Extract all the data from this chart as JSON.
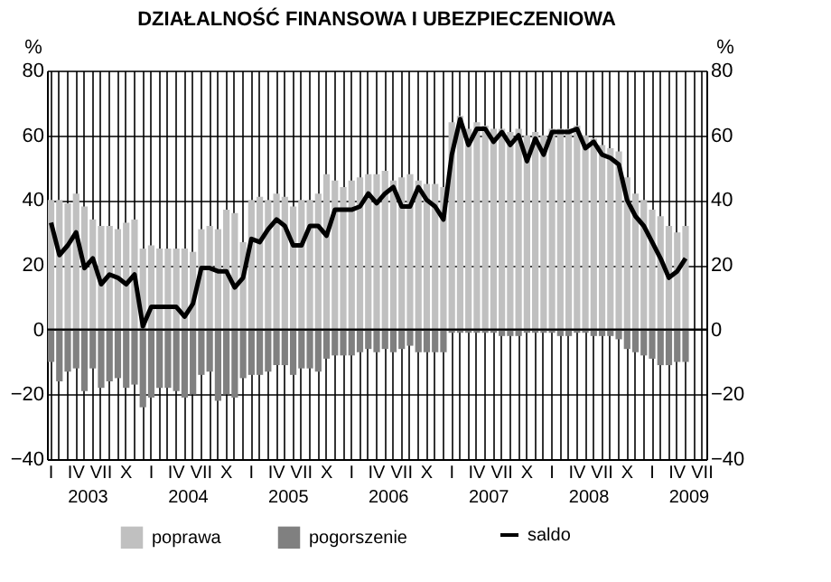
{
  "chart_data": {
    "type": "bar",
    "title": "DZIAŁALNOŚĆ FINANSOWA I UBEZPIECZENIOWA",
    "ylabel": "%",
    "y2label": "%",
    "categories": [
      "I",
      null,
      null,
      "IV",
      null,
      null,
      "VII",
      null,
      null,
      "X",
      null,
      null,
      "I",
      null,
      null,
      "IV",
      null,
      null,
      "VII",
      null,
      null,
      "X",
      null,
      null,
      "I",
      null,
      null,
      "IV",
      null,
      null,
      "VII",
      null,
      null,
      "X",
      null,
      null,
      "I",
      null,
      null,
      "IV",
      null,
      null,
      "VII",
      null,
      null,
      "X",
      null,
      null,
      "I",
      null,
      null,
      "IV",
      null,
      null,
      "VII",
      null,
      null,
      "X",
      null,
      null,
      "I",
      null,
      null,
      "IV",
      null,
      null,
      "VII",
      null,
      null,
      "X",
      null,
      null,
      "I",
      null,
      null,
      "IV",
      null,
      null,
      "VII"
    ],
    "series": [
      {
        "name": "poprawa",
        "color": "#c0c0c0",
        "values": [
          40,
          40,
          39,
          42,
          38,
          34,
          32,
          32,
          31,
          33,
          34,
          25,
          26,
          25,
          25,
          25,
          25,
          24,
          31,
          32,
          31,
          37,
          36,
          27,
          40,
          41,
          40,
          42,
          41,
          38,
          40,
          40,
          42,
          48,
          46,
          44,
          46,
          47,
          48,
          48,
          49,
          46,
          47,
          48,
          46,
          45,
          45,
          44,
          64,
          66,
          62,
          64,
          63,
          62,
          62,
          61,
          62,
          60,
          61,
          60,
          62,
          62,
          62,
          63,
          60,
          59,
          57,
          56,
          55,
          47,
          42,
          40,
          37,
          35,
          32,
          30,
          32,
          null,
          null
        ]
      },
      {
        "name": "pogorszenie",
        "color": "#808080",
        "values": [
          -10,
          -16,
          -13,
          -12,
          -19,
          -12,
          -18,
          -16,
          -15,
          -18,
          -17,
          -24,
          -21,
          -18,
          -18,
          -19,
          -21,
          -20,
          -14,
          -13,
          -22,
          -20,
          -21,
          -15,
          -14,
          -14,
          -13,
          -11,
          -11,
          -14,
          -12,
          -12,
          -13,
          -9,
          -8,
          -8,
          -8,
          -7,
          -6,
          -7,
          -6,
          -7,
          -6,
          -5,
          -7,
          -7,
          -7,
          -7,
          -1,
          -1,
          -1,
          -1,
          -1,
          -1,
          -2,
          -2,
          -2,
          -1,
          -1,
          -1,
          -1,
          -2,
          -2,
          -1,
          -1,
          -2,
          -2,
          -2,
          -3,
          -6,
          -7,
          -8,
          -9,
          -11,
          -11,
          -10,
          -10,
          null,
          null
        ]
      },
      {
        "name": "saldo",
        "type": "line",
        "axis": "y2",
        "color": "#000000",
        "values": [
          33,
          23,
          26,
          30,
          19,
          22,
          14,
          17,
          16,
          14,
          17,
          1,
          7,
          7,
          7,
          7,
          4,
          8,
          19,
          19,
          18,
          18,
          13,
          16,
          28,
          27,
          31,
          34,
          32,
          26,
          26,
          32,
          32,
          29,
          37,
          37,
          37,
          38,
          42,
          39,
          42,
          44,
          38,
          38,
          44,
          40,
          38,
          34,
          54,
          65,
          57,
          62,
          62,
          58,
          61,
          57,
          60,
          52,
          59,
          54,
          61,
          61,
          61,
          62,
          56,
          58,
          54,
          53,
          51,
          40,
          35,
          32,
          27,
          22,
          16,
          18,
          22,
          null,
          null
        ]
      }
    ],
    "ylim": [
      -40,
      80
    ],
    "yticks": [
      -40,
      -20,
      0,
      20,
      40,
      60,
      80
    ],
    "y2lim": [
      -40,
      80
    ],
    "y2ticks": [
      -40,
      -20,
      0,
      20,
      40,
      60,
      80
    ],
    "ref_lines": [
      {
        "axis": "y",
        "value": 0,
        "color": "#000000"
      }
    ],
    "annotations": [
      "2003",
      "2004",
      "2005",
      "2006",
      "2007",
      "2008",
      "2009"
    ],
    "grid": true,
    "legend": "bottom",
    "stacked": true
  }
}
